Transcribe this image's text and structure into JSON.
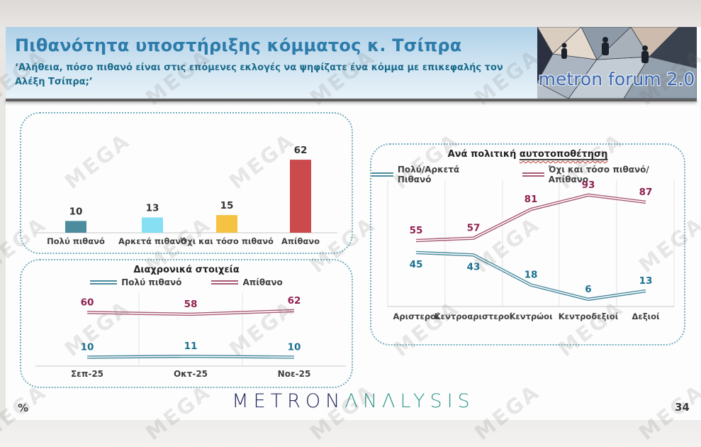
{
  "page": {
    "number": "34",
    "unit_label": "%"
  },
  "watermark": {
    "text": "MEGA"
  },
  "header": {
    "title": "Πιθανότητα υποστήριξης κόμματος κ. Τσίπρα",
    "subtitle": "‘Αλήθεια, πόσο πιθανό είναι στις επόμενες εκλογές να ψηφίζατε ένα κόμμα με επικεφαλής τον Αλέξη Τσίπρα;’"
  },
  "logo": {
    "text": "metron forum 2.0"
  },
  "footer_logo": {
    "metron": "METRON",
    "analysis": "ΛNΛLYSIS"
  },
  "colors": {
    "header_title": "#2d7cab",
    "teal_series": "#4b8b9e",
    "maroon_series": "#a85a74",
    "teal_label": "#19708e",
    "maroon_label": "#8e2150"
  },
  "chart_data": [
    {
      "type": "bar",
      "title": "",
      "categories": [
        "Πολύ πιθανό",
        "Αρκετά πιθανό",
        "Όχι και τόσο πιθανό",
        "Απίθανο"
      ],
      "values": [
        10,
        13,
        15,
        62
      ],
      "bar_colors": [
        "#4d8c9d",
        "#87dff3",
        "#f5c243",
        "#cb4a4c"
      ],
      "xlabel": "",
      "ylabel": "",
      "ylim": [
        0,
        70
      ],
      "grid": false
    },
    {
      "type": "line",
      "title": "Διαχρονικά στοιχεία",
      "categories": [
        "Σεπ-25",
        "Οκτ-25",
        "Νοε-25"
      ],
      "series": [
        {
          "name": "Πολύ πιθανό",
          "values": [
            10,
            11,
            10
          ],
          "color": "#4b8b9e",
          "label_color": "#19708e"
        },
        {
          "name": "Απίθανο",
          "values": [
            60,
            58,
            62
          ],
          "color": "#a85a74",
          "label_color": "#8e2150"
        }
      ],
      "ylim": [
        0,
        100
      ],
      "legend_position": "top",
      "grid": true
    },
    {
      "type": "line",
      "title": "Ανά πολιτική αυτοτοποθέτηση",
      "title_prefix": "Ανά πολιτική",
      "title_underlined_word": "αυτοτοποθέτηση",
      "categories": [
        "Αριστεροί",
        "Κεντροαριστεροί",
        "Κεντρώοι",
        "Κεντροδεξιοί",
        "Δεξιοί"
      ],
      "series": [
        {
          "name": "Πολύ/Αρκετά Πιθανό",
          "values": [
            45,
            43,
            18,
            6,
            13
          ],
          "color": "#4b8b9e",
          "label_color": "#19708e"
        },
        {
          "name": "Όχι και τόσο πιθανό/Απίθανο",
          "values": [
            55,
            57,
            81,
            93,
            87
          ],
          "color": "#a85a74",
          "label_color": "#8e2150"
        }
      ],
      "ylim": [
        0,
        100
      ],
      "legend_position": "top",
      "grid": true
    }
  ]
}
